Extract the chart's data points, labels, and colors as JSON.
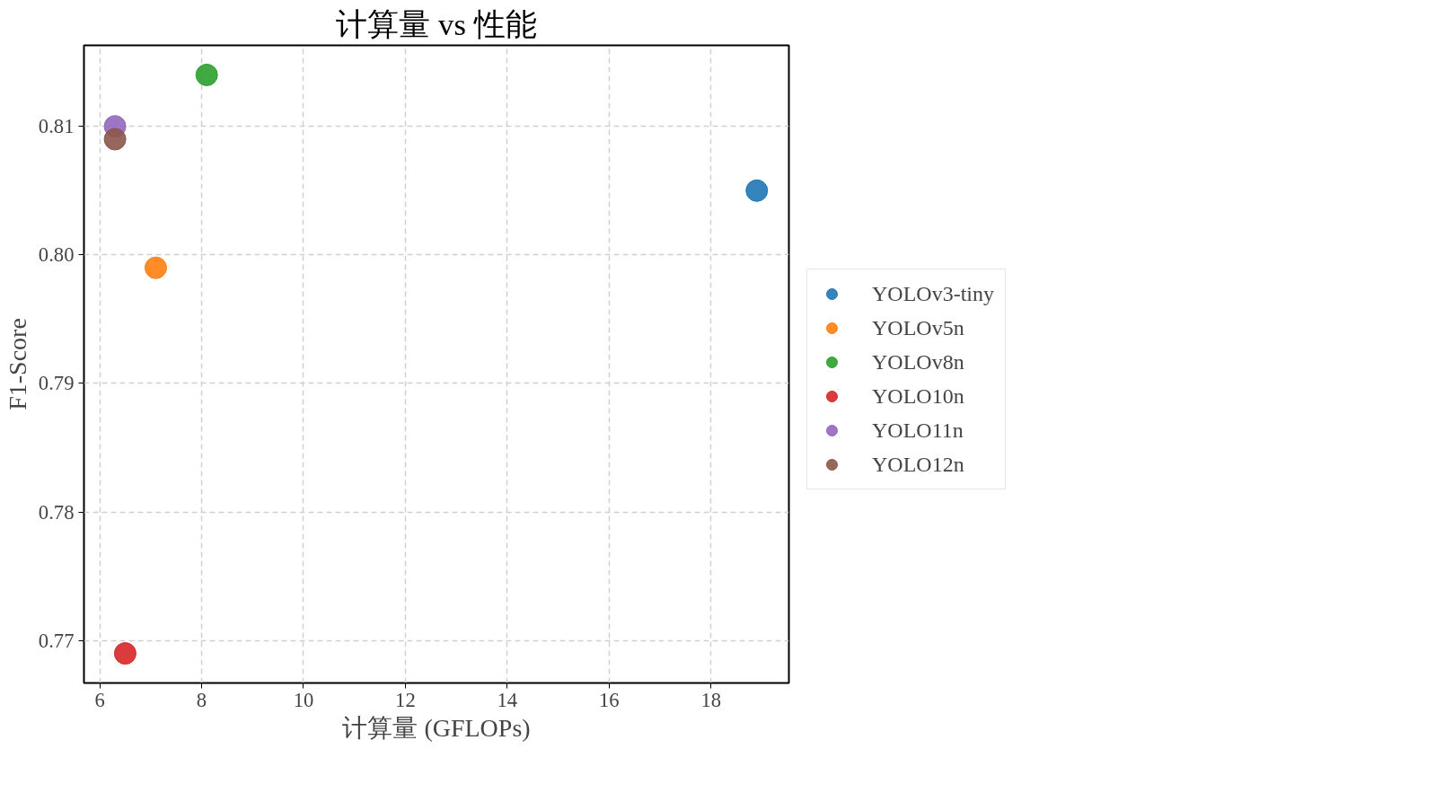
{
  "chart_data": {
    "type": "scatter",
    "title": "计算量 vs 性能",
    "xlabel": "计算量 (GFLOPs)",
    "ylabel": "F1-Score",
    "xlim": [
      5.69,
      19.53
    ],
    "xticks": [
      6,
      8,
      10,
      12,
      14,
      16,
      18
    ],
    "ylim": [
      0.7667,
      0.8163
    ],
    "yticks": [
      0.77,
      0.78,
      0.79,
      {
        "value": 0.8,
        "label": "0.80"
      },
      0.81
    ],
    "grid": true,
    "legend": "right",
    "marker": "circle",
    "series": [
      {
        "name": "YOLOv3-tiny",
        "color": "#1f77b4",
        "x": [
          18.9
        ],
        "values": [
          0.805
        ]
      },
      {
        "name": "YOLOv5n",
        "color": "#ff7f0e",
        "x": [
          7.1
        ],
        "values": [
          0.799
        ]
      },
      {
        "name": "YOLOv8n",
        "color": "#2ca02c",
        "x": [
          8.1
        ],
        "values": [
          0.814
        ]
      },
      {
        "name": "YOLO10n",
        "color": "#d62728",
        "x": [
          6.5
        ],
        "values": [
          0.769
        ]
      },
      {
        "name": "YOLO11n",
        "color": "#9467bd",
        "x": [
          6.3
        ],
        "values": [
          0.81
        ]
      },
      {
        "name": "YOLO12n",
        "color": "#8c564b",
        "x": [
          6.3
        ],
        "values": [
          0.809
        ]
      }
    ]
  }
}
